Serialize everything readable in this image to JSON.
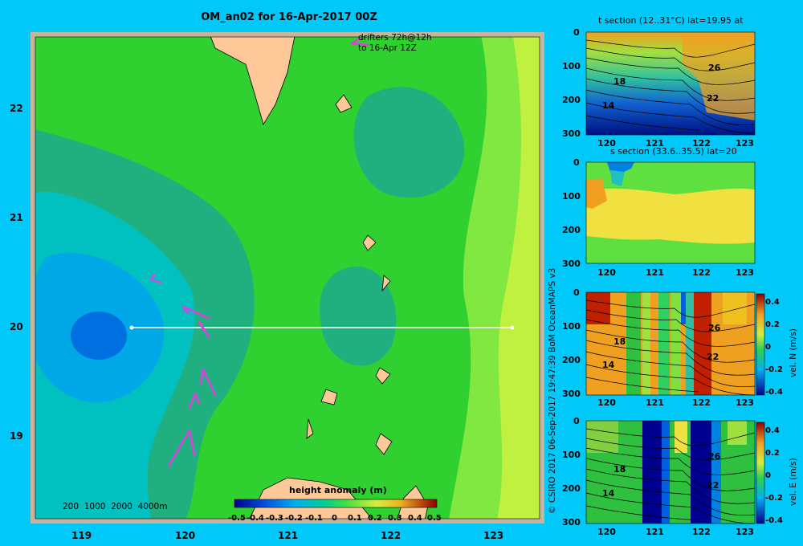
{
  "main_map": {
    "title": "OM_an02 for 16-Apr-2017 00Z",
    "drifter_note_line1": "drifters 72h@12h",
    "drifter_note_line2": "to 16-Apr 12Z",
    "depth_legend": "200  1000  2000  4000m",
    "xticks": [
      "119",
      "120",
      "121",
      "122",
      "123"
    ],
    "yticks": [
      "22",
      "21",
      "20",
      "19"
    ],
    "colorbar_title": "height anomaly (m)",
    "colorbar_ticks": [
      "-0.5",
      "-0.4",
      "-0.3",
      "-0.2",
      "-0.1",
      "0",
      "0.1",
      "0.2",
      "0.3",
      "0.4",
      "0.5"
    ],
    "section_line": {
      "lat": 20,
      "lon_start": 119.5,
      "lon_end": 123.1
    }
  },
  "credit": "© CSIRO 2017   06-Sep-2017 19:47:39 BoM OceanMAPS v3",
  "panels": [
    {
      "title": "t section (12..31°C) lat=19.95 at",
      "xticks": [
        "120",
        "121",
        "122",
        "123"
      ],
      "yticks": [
        "0",
        "100",
        "200",
        "300"
      ],
      "labels": [
        "26",
        "18",
        "22",
        "14"
      ]
    },
    {
      "title": "s section (33.6..35.5) lat=20",
      "xticks": [
        "120",
        "121",
        "122",
        "123"
      ],
      "yticks": [
        "0",
        "100",
        "200",
        "300"
      ],
      "labels": []
    },
    {
      "title": "",
      "xticks": [
        "120",
        "121",
        "122",
        "123"
      ],
      "yticks": [
        "0",
        "100",
        "200",
        "300"
      ],
      "labels": [
        "26",
        "18",
        "22",
        "14"
      ],
      "cb_ticks": [
        "0.4",
        "0.2",
        "0",
        "-0.2",
        "-0.4"
      ],
      "cb_label": "vel. N (m/s)"
    },
    {
      "title": "",
      "xticks": [
        "120",
        "121",
        "122",
        "123"
      ],
      "yticks": [
        "0",
        "100",
        "200",
        "300"
      ],
      "labels": [
        "26",
        "18",
        "22",
        "14"
      ],
      "cb_ticks": [
        "0.4",
        "0.2",
        "0",
        "-0.2",
        "-0.4"
      ],
      "cb_label": "vel. E (m/s)"
    }
  ],
  "chart_data": [
    {
      "type": "heatmap",
      "title": "OM_an02 for 16-Apr-2017 00Z",
      "xlim": [
        118.5,
        123.6
      ],
      "ylim": [
        18.3,
        22.7
      ],
      "colorbar": {
        "label": "height anomaly (m)",
        "range": [
          -0.5,
          0.5
        ]
      },
      "features": [
        {
          "name": "low",
          "lon": 119.2,
          "lat": 20.0,
          "value": -0.25
        },
        {
          "name": "high",
          "lon": 123.4,
          "lat": 20.0,
          "value": 0.2
        }
      ]
    },
    {
      "type": "heatmap",
      "title": "t section (12..31°C) lat=19.95 at",
      "xlim": [
        119.6,
        123.2
      ],
      "ylim": [
        300,
        0
      ],
      "contour_labels": [
        26,
        18,
        22,
        14
      ]
    },
    {
      "type": "heatmap",
      "title": "s section (33.6..35.5) lat=20",
      "xlim": [
        119.6,
        123.2
      ],
      "ylim": [
        300,
        0
      ]
    },
    {
      "type": "heatmap",
      "xlim": [
        119.6,
        123.2
      ],
      "ylim": [
        300,
        0
      ],
      "colorbar": {
        "label": "vel. N (m/s)",
        "range": [
          -0.4,
          0.4
        ]
      }
    },
    {
      "type": "heatmap",
      "xlim": [
        119.6,
        123.2
      ],
      "ylim": [
        300,
        0
      ],
      "colorbar": {
        "label": "vel. E (m/s)",
        "range": [
          -0.4,
          0.4
        ]
      }
    }
  ],
  "colors": {
    "background": "#00c8f8",
    "land": "#ffc898",
    "frame": "#c8b49c",
    "drifter": "#e040e0",
    "green": "#30d030",
    "teal": "#20b080",
    "blue": "#0070e0",
    "yellow": "#c0f040"
  }
}
